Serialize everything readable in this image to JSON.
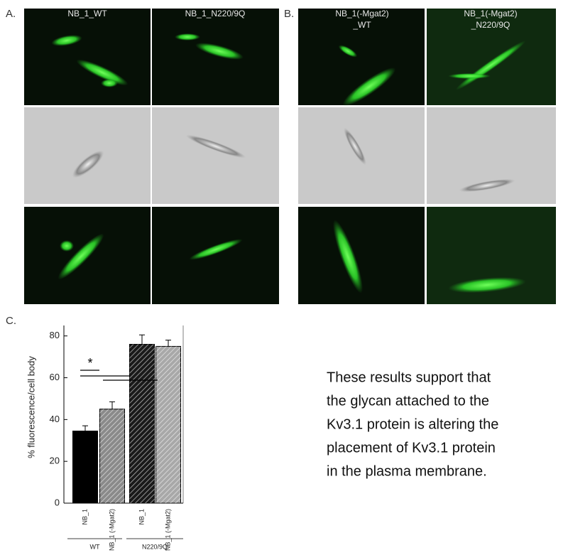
{
  "panels": {
    "a": {
      "label": "A.",
      "headers": [
        "NB_1_WT",
        "NB_1_N220/9Q"
      ]
    },
    "b": {
      "label": "B.",
      "headers": [
        [
          "NB_1(-Mgat2)",
          "_WT"
        ],
        [
          "NB_1(-Mgat2)",
          "_N220/9Q"
        ]
      ]
    },
    "c": {
      "label": "C."
    }
  },
  "chart_data": {
    "type": "bar",
    "y_label": "% fluorescence/cell body",
    "categories": [
      "NB_1",
      "NB_1 (-Mgat2)",
      "NB_1",
      "NB_1 (-Mgat2)"
    ],
    "groups": [
      "WT",
      "N220/9Q"
    ],
    "values": [
      34.5,
      45,
      76,
      75
    ],
    "errors": [
      2.5,
      3.5,
      4.5,
      3
    ],
    "colors": [
      "#000000",
      "#8a8a8a",
      "#1a1a1a",
      "#a8a8a8"
    ],
    "hatch": [
      false,
      true,
      true,
      true
    ],
    "ylim": [
      0,
      85
    ],
    "yticks": [
      0,
      20,
      40,
      60,
      80
    ],
    "annotation": "*"
  },
  "text": {
    "lines": [
      "These results support that",
      "the glycan attached to the",
      "Kv3.1 protein is altering the",
      "placement of Kv3.1 protein",
      "in the plasma membrane."
    ]
  }
}
